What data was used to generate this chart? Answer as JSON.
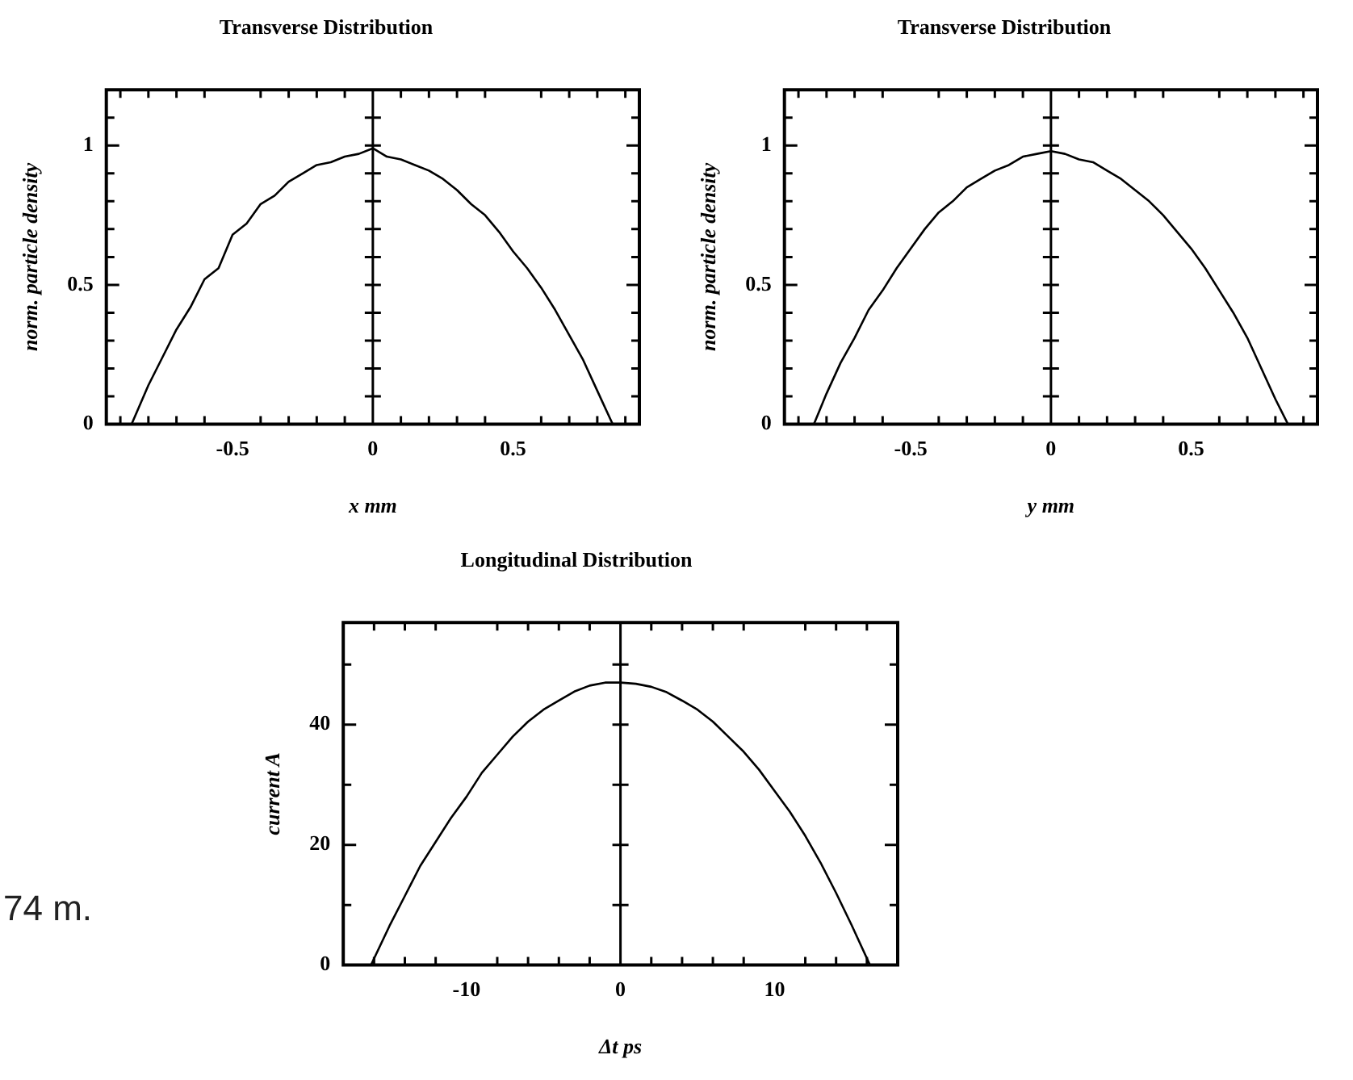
{
  "chart_data": [
    {
      "type": "line",
      "title": "Transverse Distribution",
      "xlabel": "x mm",
      "ylabel": "norm. particle density",
      "x": [
        -0.86,
        -0.8,
        -0.75,
        -0.7,
        -0.65,
        -0.6,
        -0.55,
        -0.5,
        -0.45,
        -0.4,
        -0.35,
        -0.3,
        -0.25,
        -0.2,
        -0.15,
        -0.1,
        -0.05,
        0,
        0.05,
        0.1,
        0.15,
        0.2,
        0.25,
        0.3,
        0.35,
        0.4,
        0.45,
        0.5,
        0.55,
        0.6,
        0.65,
        0.7,
        0.75,
        0.8,
        0.855
      ],
      "series": [
        {
          "color": "#000000",
          "values": [
            0,
            0.14,
            0.24,
            0.34,
            0.42,
            0.52,
            0.56,
            0.68,
            0.72,
            0.79,
            0.82,
            0.87,
            0.9,
            0.93,
            0.94,
            0.96,
            0.97,
            0.99,
            0.96,
            0.95,
            0.93,
            0.91,
            0.88,
            0.84,
            0.79,
            0.75,
            0.69,
            0.62,
            0.56,
            0.49,
            0.41,
            0.32,
            0.23,
            0.12,
            0
          ]
        }
      ],
      "xlim": [
        -0.95,
        0.95
      ],
      "ylim": [
        0,
        1.2
      ],
      "xticks": [
        {
          "value": -0.9,
          "label": null
        },
        {
          "value": -0.8,
          "label": null
        },
        {
          "value": -0.7,
          "label": null
        },
        {
          "value": -0.6,
          "label": null
        },
        -0.5,
        {
          "value": -0.4,
          "label": null
        },
        {
          "value": -0.3,
          "label": null
        },
        {
          "value": -0.2,
          "label": null
        },
        {
          "value": -0.1,
          "label": null
        },
        0,
        {
          "value": 0.1,
          "label": null
        },
        {
          "value": 0.2,
          "label": null
        },
        {
          "value": 0.3,
          "label": null
        },
        {
          "value": 0.4,
          "label": null
        },
        0.5,
        {
          "value": 0.6,
          "label": null
        },
        {
          "value": 0.7,
          "label": null
        },
        {
          "value": 0.8,
          "label": null
        },
        {
          "value": 0.9,
          "label": null
        }
      ],
      "yticks": [
        0,
        {
          "value": 0.1,
          "label": null
        },
        {
          "value": 0.2,
          "label": null
        },
        {
          "value": 0.3,
          "label": null
        },
        {
          "value": 0.4,
          "label": null
        },
        0.5,
        {
          "value": 0.6,
          "label": null
        },
        {
          "value": 0.7,
          "label": null
        },
        {
          "value": 0.8,
          "label": null
        },
        {
          "value": 0.9,
          "label": null
        },
        1,
        {
          "value": 1.1,
          "label": null
        }
      ],
      "ref_lines": [
        {
          "axis": "x",
          "value": 0
        }
      ]
    },
    {
      "type": "line",
      "title": "Transverse Distribution",
      "xlabel": "y mm",
      "ylabel": "norm. particle density",
      "x": [
        -0.845,
        -0.8,
        -0.75,
        -0.7,
        -0.65,
        -0.6,
        -0.55,
        -0.5,
        -0.45,
        -0.4,
        -0.35,
        -0.3,
        -0.25,
        -0.2,
        -0.15,
        -0.1,
        -0.05,
        0,
        0.05,
        0.1,
        0.15,
        0.2,
        0.25,
        0.3,
        0.35,
        0.4,
        0.45,
        0.5,
        0.55,
        0.6,
        0.65,
        0.7,
        0.75,
        0.8,
        0.845
      ],
      "series": [
        {
          "color": "#000000",
          "values": [
            0,
            0.11,
            0.22,
            0.31,
            0.41,
            0.48,
            0.56,
            0.63,
            0.7,
            0.76,
            0.8,
            0.85,
            0.88,
            0.91,
            0.93,
            0.96,
            0.97,
            0.98,
            0.97,
            0.95,
            0.94,
            0.91,
            0.88,
            0.84,
            0.8,
            0.75,
            0.69,
            0.63,
            0.56,
            0.48,
            0.4,
            0.31,
            0.2,
            0.09,
            0
          ]
        }
      ],
      "xlim": [
        -0.95,
        0.95
      ],
      "ylim": [
        0,
        1.2
      ],
      "xticks": [
        {
          "value": -0.9,
          "label": null
        },
        {
          "value": -0.8,
          "label": null
        },
        {
          "value": -0.7,
          "label": null
        },
        {
          "value": -0.6,
          "label": null
        },
        -0.5,
        {
          "value": -0.4,
          "label": null
        },
        {
          "value": -0.3,
          "label": null
        },
        {
          "value": -0.2,
          "label": null
        },
        {
          "value": -0.1,
          "label": null
        },
        0,
        {
          "value": 0.1,
          "label": null
        },
        {
          "value": 0.2,
          "label": null
        },
        {
          "value": 0.3,
          "label": null
        },
        {
          "value": 0.4,
          "label": null
        },
        0.5,
        {
          "value": 0.6,
          "label": null
        },
        {
          "value": 0.7,
          "label": null
        },
        {
          "value": 0.8,
          "label": null
        },
        {
          "value": 0.9,
          "label": null
        }
      ],
      "yticks": [
        0,
        {
          "value": 0.1,
          "label": null
        },
        {
          "value": 0.2,
          "label": null
        },
        {
          "value": 0.3,
          "label": null
        },
        {
          "value": 0.4,
          "label": null
        },
        0.5,
        {
          "value": 0.6,
          "label": null
        },
        {
          "value": 0.7,
          "label": null
        },
        {
          "value": 0.8,
          "label": null
        },
        {
          "value": 0.9,
          "label": null
        },
        1,
        {
          "value": 1.1,
          "label": null
        }
      ],
      "ref_lines": [
        {
          "axis": "x",
          "value": 0
        }
      ]
    },
    {
      "type": "line",
      "title": "Longitudinal Distribution",
      "xlabel": "Δt ps",
      "ylabel": "current A",
      "annotations": [
        "74 m."
      ],
      "x": [
        -16.2,
        -15,
        -14,
        -13,
        -12,
        -11,
        -10,
        -9,
        -8,
        -7,
        -6,
        -5,
        -4,
        -3,
        -2,
        -1,
        0,
        1,
        2,
        3,
        4,
        5,
        6,
        7,
        8,
        9,
        10,
        11,
        12,
        13,
        14,
        15,
        16.2
      ],
      "series": [
        {
          "color": "#000000",
          "values": [
            0,
            6.5,
            11.5,
            16.5,
            20.5,
            24.5,
            28,
            32,
            35,
            38,
            40.5,
            42.5,
            44,
            45.5,
            46.5,
            47,
            47,
            46.8,
            46.3,
            45.4,
            44,
            42.5,
            40.5,
            38,
            35.5,
            32.5,
            29,
            25.5,
            21.5,
            17,
            12,
            6.7,
            0
          ]
        }
      ],
      "xlim": [
        -18,
        18
      ],
      "ylim": [
        0,
        57
      ],
      "xticks": [
        {
          "value": -16,
          "label": null
        },
        {
          "value": -14,
          "label": null
        },
        {
          "value": -12,
          "label": null
        },
        -10,
        {
          "value": -8,
          "label": null
        },
        {
          "value": -6,
          "label": null
        },
        {
          "value": -4,
          "label": null
        },
        {
          "value": -2,
          "label": null
        },
        0,
        {
          "value": 2,
          "label": null
        },
        {
          "value": 4,
          "label": null
        },
        {
          "value": 6,
          "label": null
        },
        {
          "value": 8,
          "label": null
        },
        10,
        {
          "value": 12,
          "label": null
        },
        {
          "value": 14,
          "label": null
        },
        {
          "value": 16,
          "label": null
        }
      ],
      "yticks": [
        0,
        {
          "value": 10,
          "label": null
        },
        20,
        {
          "value": 30,
          "label": null
        },
        40,
        {
          "value": 50,
          "label": null
        }
      ],
      "ref_lines": [
        {
          "axis": "x",
          "value": 0
        }
      ]
    }
  ]
}
